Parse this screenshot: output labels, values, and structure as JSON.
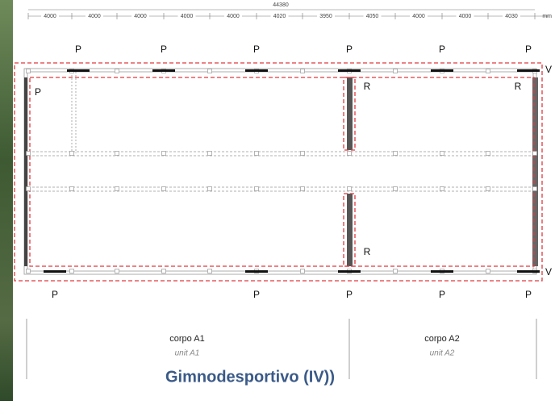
{
  "dimensions": {
    "total": 44380,
    "unit": "mm",
    "segments": [
      4000,
      4000,
      4000,
      4000,
      4000,
      4020,
      3950,
      4050,
      4000,
      4000,
      4030
    ]
  },
  "plan_labels": {
    "top_p": [
      "P",
      "P",
      "P",
      "P",
      "P",
      "P"
    ],
    "left_p": "P",
    "v": [
      "V",
      "V"
    ],
    "r": [
      "R",
      "R",
      "R"
    ],
    "bottom_p": [
      "P",
      "P",
      "P",
      "P",
      "P"
    ]
  },
  "units": [
    {
      "name": "corpo A1",
      "subtitle": "unit A1"
    },
    {
      "name": "corpo A2",
      "subtitle": "unit A2"
    }
  ],
  "title": "Gimnodesportivo (IV))"
}
